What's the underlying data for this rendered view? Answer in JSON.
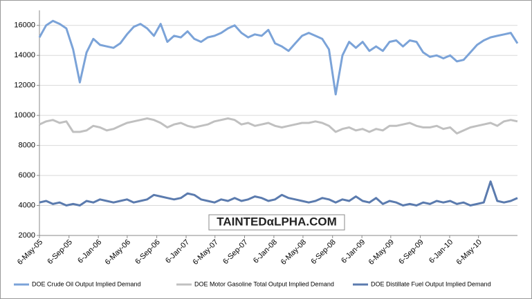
{
  "chart_data": {
    "type": "line",
    "x": [
      "6-May-05",
      "3-Jun-05",
      "1-Jul-05",
      "29-Jul-05",
      "26-Aug-05",
      "23-Sep-05",
      "21-Oct-05",
      "18-Nov-05",
      "16-Dec-05",
      "13-Jan-06",
      "10-Feb-06",
      "10-Mar-06",
      "7-Apr-06",
      "5-May-06",
      "2-Jun-06",
      "30-Jun-06",
      "28-Jul-06",
      "25-Aug-06",
      "22-Sep-06",
      "20-Oct-06",
      "17-Nov-06",
      "15-Dec-06",
      "12-Jan-07",
      "9-Feb-07",
      "9-Mar-07",
      "6-Apr-07",
      "4-May-07",
      "1-Jun-07",
      "29-Jun-07",
      "27-Jul-07",
      "24-Aug-07",
      "21-Sep-07",
      "19-Oct-07",
      "16-Nov-07",
      "14-Dec-07",
      "11-Jan-08",
      "8-Feb-08",
      "7-Mar-08",
      "4-Apr-08",
      "2-May-08",
      "30-May-08",
      "27-Jun-08",
      "25-Jul-08",
      "22-Aug-08",
      "19-Sep-08",
      "17-Oct-08",
      "14-Nov-08",
      "12-Dec-08",
      "9-Jan-09",
      "6-Feb-09",
      "6-Mar-09",
      "3-Apr-09",
      "1-May-09",
      "29-May-09",
      "26-Jun-09",
      "24-Jul-09",
      "21-Aug-09",
      "18-Sep-09",
      "16-Oct-09",
      "13-Nov-09",
      "11-Dec-09",
      "8-Jan-10",
      "5-Feb-10",
      "5-Mar-10",
      "2-Apr-10",
      "30-Apr-10",
      "28-May-10",
      "25-Jun-10",
      "23-Jul-10",
      "20-Aug-10",
      "17-Sep-10",
      "15-Oct-10"
    ],
    "series": [
      {
        "name": "DOE Crude Oil Output Implied Demand",
        "color": "#7ba3d8",
        "values": [
          15200,
          16000,
          16300,
          16100,
          15800,
          14400,
          12200,
          14200,
          15100,
          14700,
          14600,
          14500,
          14800,
          15400,
          15900,
          16100,
          15800,
          15300,
          16100,
          14900,
          15300,
          15200,
          15600,
          15100,
          14900,
          15200,
          15300,
          15500,
          15800,
          16000,
          15500,
          15200,
          15400,
          15300,
          15700,
          14800,
          14600,
          14300,
          14800,
          15300,
          15500,
          15300,
          15100,
          14400,
          11400,
          14000,
          14900,
          14500,
          14900,
          14300,
          14600,
          14300,
          14900,
          15000,
          14600,
          15000,
          14900,
          14200,
          13900,
          14000,
          13800,
          14000,
          13600,
          13700,
          14200,
          14700,
          15000,
          15200,
          15300,
          15400,
          15500,
          14800
        ]
      },
      {
        "name": "DOE Motor Gasoline Total Output Implied Demand",
        "color": "#c0c0c0",
        "values": [
          9400,
          9600,
          9700,
          9500,
          9600,
          8900,
          8900,
          9000,
          9300,
          9200,
          9000,
          9100,
          9300,
          9500,
          9600,
          9700,
          9800,
          9700,
          9500,
          9200,
          9400,
          9500,
          9300,
          9200,
          9300,
          9400,
          9600,
          9700,
          9800,
          9700,
          9400,
          9500,
          9300,
          9400,
          9500,
          9300,
          9200,
          9300,
          9400,
          9500,
          9500,
          9600,
          9500,
          9300,
          8900,
          9100,
          9200,
          9000,
          9100,
          8900,
          9100,
          9000,
          9300,
          9300,
          9400,
          9500,
          9300,
          9200,
          9200,
          9300,
          9100,
          9200,
          8800,
          9000,
          9200,
          9300,
          9400,
          9500,
          9300,
          9600,
          9700,
          9600
        ]
      },
      {
        "name": "DOE Distillate Fuel Output Implied Demand",
        "color": "#5b7bae",
        "values": [
          4200,
          4300,
          4100,
          4200,
          4000,
          4100,
          4000,
          4300,
          4200,
          4400,
          4300,
          4200,
          4300,
          4400,
          4200,
          4300,
          4400,
          4700,
          4600,
          4500,
          4400,
          4500,
          4800,
          4700,
          4400,
          4300,
          4200,
          4400,
          4300,
          4500,
          4300,
          4400,
          4600,
          4500,
          4300,
          4400,
          4700,
          4500,
          4400,
          4300,
          4200,
          4300,
          4500,
          4400,
          4200,
          4400,
          4300,
          4600,
          4300,
          4200,
          4500,
          4100,
          4300,
          4200,
          4000,
          4100,
          4000,
          4200,
          4100,
          4300,
          4200,
          4300,
          4100,
          4200,
          4000,
          4100,
          4200,
          5600,
          4300,
          4200,
          4300,
          4500
        ]
      }
    ],
    "xlim": [
      "6-May-05",
      "15-Oct-10"
    ],
    "xticks": [
      "6-May-05",
      "6-Sep-05",
      "6-Jan-06",
      "6-May-06",
      "6-Sep-06",
      "6-Jan-07",
      "6-May-07",
      "6-Sep-07",
      "6-Jan-08",
      "6-May-08",
      "6-Sep-08",
      "6-Jan-09",
      "6-May-09",
      "6-Sep-09",
      "6-Jan-10",
      "6-May-10"
    ],
    "ylim": [
      2000,
      17000
    ],
    "yticks": [
      2000,
      4000,
      6000,
      8000,
      10000,
      12000,
      14000,
      16000
    ],
    "grid": true,
    "legend": "bottom",
    "watermark": "TAINTEDαLPHA.COM"
  }
}
